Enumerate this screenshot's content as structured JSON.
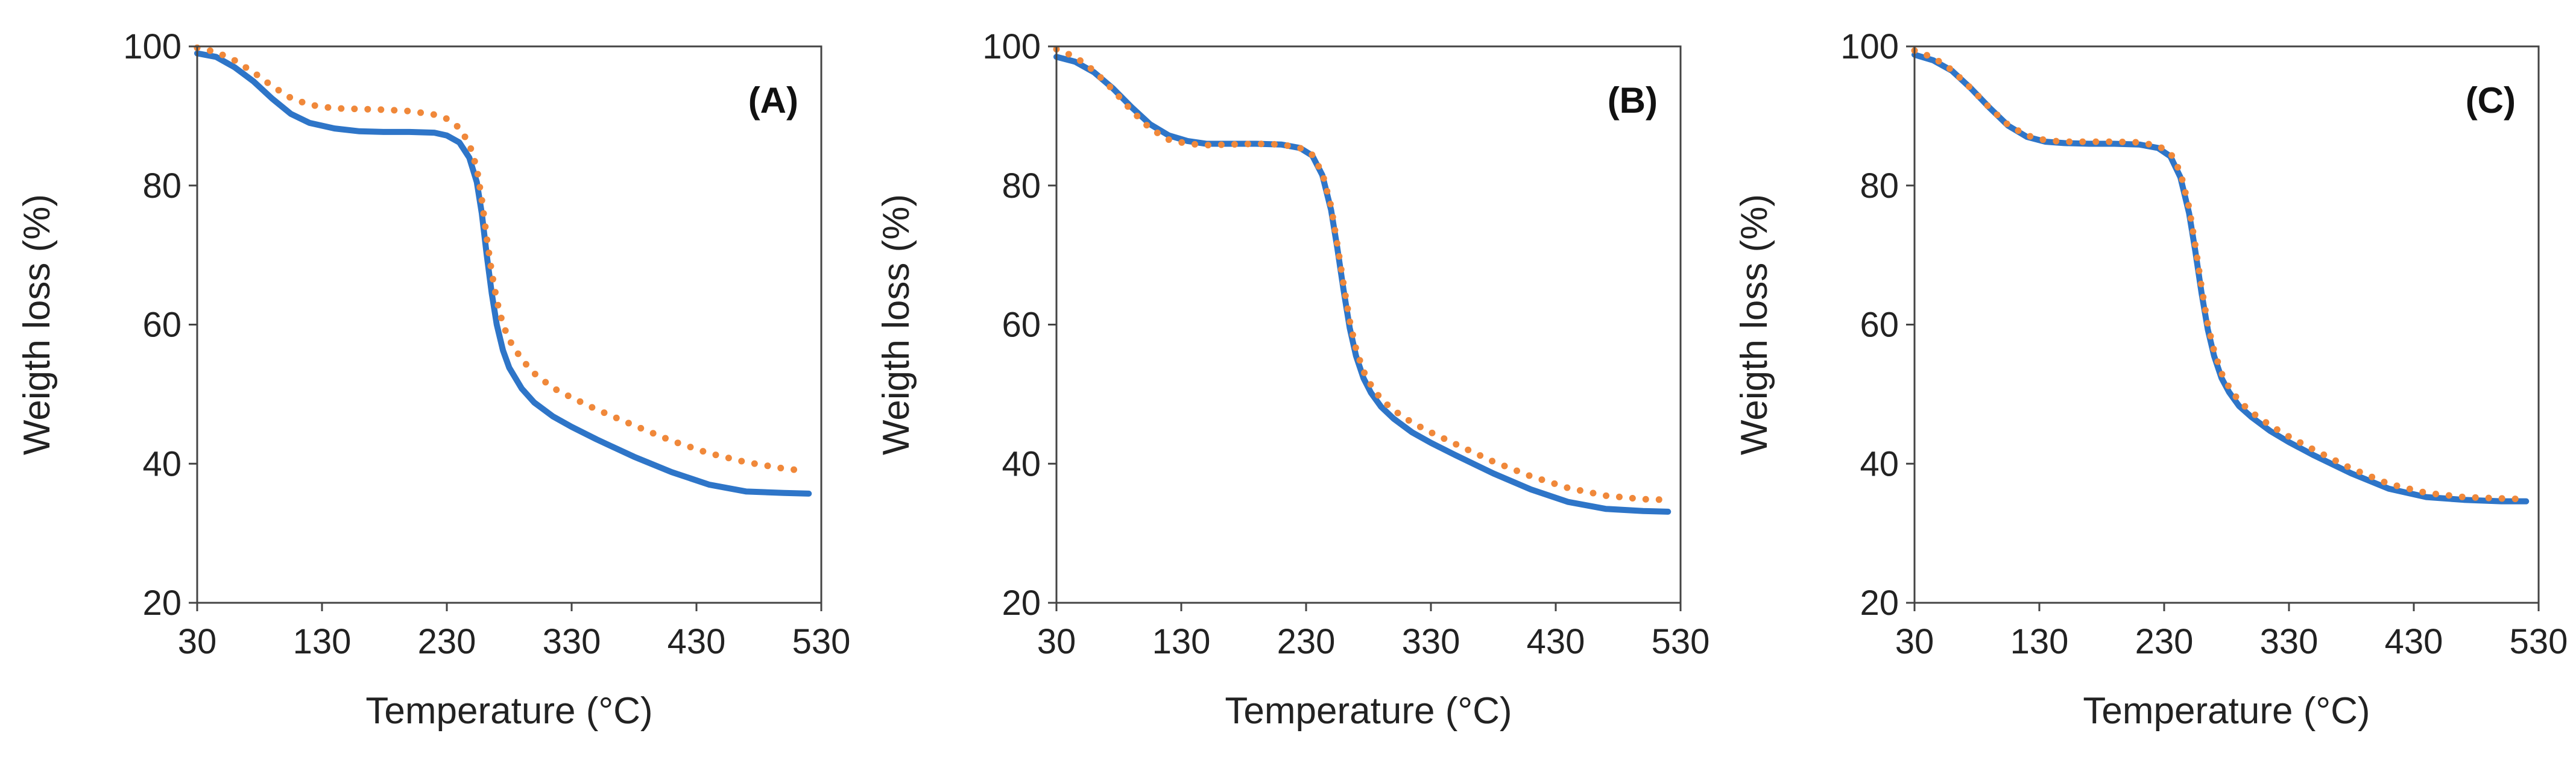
{
  "chart_data": [
    {
      "type": "line",
      "panel_label": "(A)",
      "xlabel": "Temperature  (°C)",
      "ylabel": "Weigth loss (%)",
      "xlim": [
        30,
        530
      ],
      "ylim": [
        20,
        100
      ],
      "xticks": [
        30,
        130,
        230,
        330,
        430,
        530
      ],
      "yticks": [
        20,
        40,
        60,
        80,
        100
      ],
      "legend": "none",
      "series": [
        {
          "name": "solid",
          "style": "solid",
          "color": "#2E75C8",
          "x": [
            30,
            45,
            60,
            75,
            90,
            105,
            120,
            140,
            160,
            180,
            200,
            220,
            230,
            240,
            248,
            254,
            258,
            262,
            266,
            270,
            275,
            280,
            290,
            300,
            315,
            330,
            350,
            380,
            410,
            440,
            470,
            500,
            520
          ],
          "y": [
            99,
            98.5,
            97,
            95,
            92.5,
            90.3,
            89,
            88.2,
            87.8,
            87.7,
            87.7,
            87.6,
            87.2,
            86.2,
            84,
            80.5,
            76,
            70,
            64.5,
            60,
            56.3,
            53.8,
            50.8,
            48.8,
            46.8,
            45.3,
            43.5,
            41,
            38.8,
            37,
            36,
            35.8,
            35.7
          ]
        },
        {
          "name": "dotted",
          "style": "dotted",
          "color": "#F0883A",
          "x": [
            30,
            45,
            60,
            75,
            90,
            105,
            120,
            140,
            160,
            180,
            200,
            220,
            230,
            240,
            248,
            254,
            258,
            262,
            266,
            270,
            275,
            280,
            290,
            300,
            315,
            330,
            350,
            380,
            410,
            440,
            470,
            500,
            510
          ],
          "y": [
            99.8,
            99.2,
            98,
            96.3,
            94.3,
            92.6,
            91.6,
            91.1,
            91,
            90.9,
            90.7,
            90.2,
            89.6,
            88.3,
            86,
            82.5,
            78,
            72.5,
            67.5,
            63.5,
            60,
            57.8,
            55,
            53,
            50.9,
            49.5,
            47.8,
            45.5,
            43.3,
            41.5,
            40.2,
            39.3,
            39.1
          ]
        }
      ]
    },
    {
      "type": "line",
      "panel_label": "(B)",
      "xlabel": "Temperature  (°C)",
      "ylabel": "Weigth loss (%)",
      "xlim": [
        30,
        530
      ],
      "ylim": [
        20,
        100
      ],
      "xticks": [
        30,
        130,
        230,
        330,
        430,
        530
      ],
      "yticks": [
        20,
        40,
        60,
        80,
        100
      ],
      "legend": "none",
      "series": [
        {
          "name": "solid",
          "style": "solid",
          "color": "#2E75C8",
          "x": [
            30,
            45,
            60,
            75,
            90,
            105,
            120,
            135,
            150,
            170,
            190,
            210,
            225,
            235,
            243,
            250,
            255,
            260,
            265,
            270,
            276,
            282,
            290,
            300,
            315,
            330,
            350,
            380,
            410,
            440,
            470,
            500,
            520
          ],
          "y": [
            98.5,
            97.8,
            96.3,
            94,
            91.3,
            88.8,
            87.2,
            86.4,
            86,
            86,
            86,
            85.9,
            85.4,
            84.3,
            81.5,
            76.5,
            71,
            65,
            59.5,
            55.5,
            52.3,
            50.2,
            48.2,
            46.5,
            44.5,
            43,
            41.2,
            38.6,
            36.3,
            34.5,
            33.5,
            33.2,
            33.1
          ]
        },
        {
          "name": "dotted",
          "style": "dotted",
          "color": "#F0883A",
          "x": [
            30,
            45,
            60,
            75,
            90,
            105,
            120,
            135,
            150,
            170,
            190,
            210,
            225,
            235,
            243,
            250,
            255,
            260,
            265,
            270,
            276,
            282,
            290,
            300,
            315,
            330,
            350,
            380,
            410,
            440,
            470,
            500,
            520
          ],
          "y": [
            99.6,
            98.5,
            96.5,
            93.8,
            90.8,
            88.2,
            86.6,
            86,
            85.8,
            85.9,
            86,
            85.9,
            85.4,
            84.4,
            81.8,
            77,
            71.5,
            65.8,
            60.5,
            56.5,
            53.3,
            51.3,
            49.3,
            47.7,
            45.9,
            44.5,
            42.8,
            40.3,
            38.2,
            36.5,
            35.4,
            34.9,
            34.8
          ]
        }
      ]
    },
    {
      "type": "line",
      "panel_label": "(C)",
      "xlabel": "Temperature  (°C)",
      "ylabel": "Weigth loss (%)",
      "xlim": [
        30,
        530
      ],
      "ylim": [
        20,
        100
      ],
      "xticks": [
        30,
        130,
        230,
        330,
        430,
        530
      ],
      "yticks": [
        20,
        40,
        60,
        80,
        100
      ],
      "legend": "none",
      "series": [
        {
          "name": "solid",
          "style": "solid",
          "color": "#2E75C8",
          "x": [
            30,
            45,
            60,
            75,
            90,
            105,
            120,
            135,
            150,
            170,
            190,
            210,
            225,
            235,
            243,
            250,
            255,
            260,
            265,
            270,
            276,
            282,
            290,
            300,
            315,
            330,
            350,
            380,
            410,
            440,
            470,
            500,
            520
          ],
          "y": [
            98.8,
            98,
            96.5,
            94,
            91.2,
            88.6,
            87,
            86.3,
            86.1,
            86,
            86,
            85.9,
            85.4,
            84.2,
            81.2,
            76,
            70.5,
            64.5,
            59.3,
            55.5,
            52.3,
            50.3,
            48.3,
            46.7,
            44.7,
            43.1,
            41.2,
            38.6,
            36.4,
            35.2,
            34.8,
            34.6,
            34.6
          ]
        },
        {
          "name": "dotted",
          "style": "dotted",
          "color": "#F0883A",
          "x": [
            30,
            45,
            60,
            75,
            90,
            105,
            120,
            135,
            150,
            170,
            190,
            210,
            225,
            235,
            243,
            250,
            255,
            260,
            265,
            270,
            276,
            282,
            290,
            300,
            315,
            330,
            350,
            380,
            410,
            440,
            470,
            500,
            520
          ],
          "y": [
            99.4,
            98.4,
            96.6,
            94,
            91.2,
            88.7,
            87.2,
            86.5,
            86.3,
            86.3,
            86.3,
            86.2,
            85.7,
            84.7,
            81.9,
            76.8,
            71.3,
            65.3,
            60,
            56.2,
            53,
            51,
            49,
            47.4,
            45.5,
            43.9,
            42,
            39.3,
            37.1,
            35.8,
            35.2,
            35,
            34.9
          ]
        }
      ]
    }
  ]
}
